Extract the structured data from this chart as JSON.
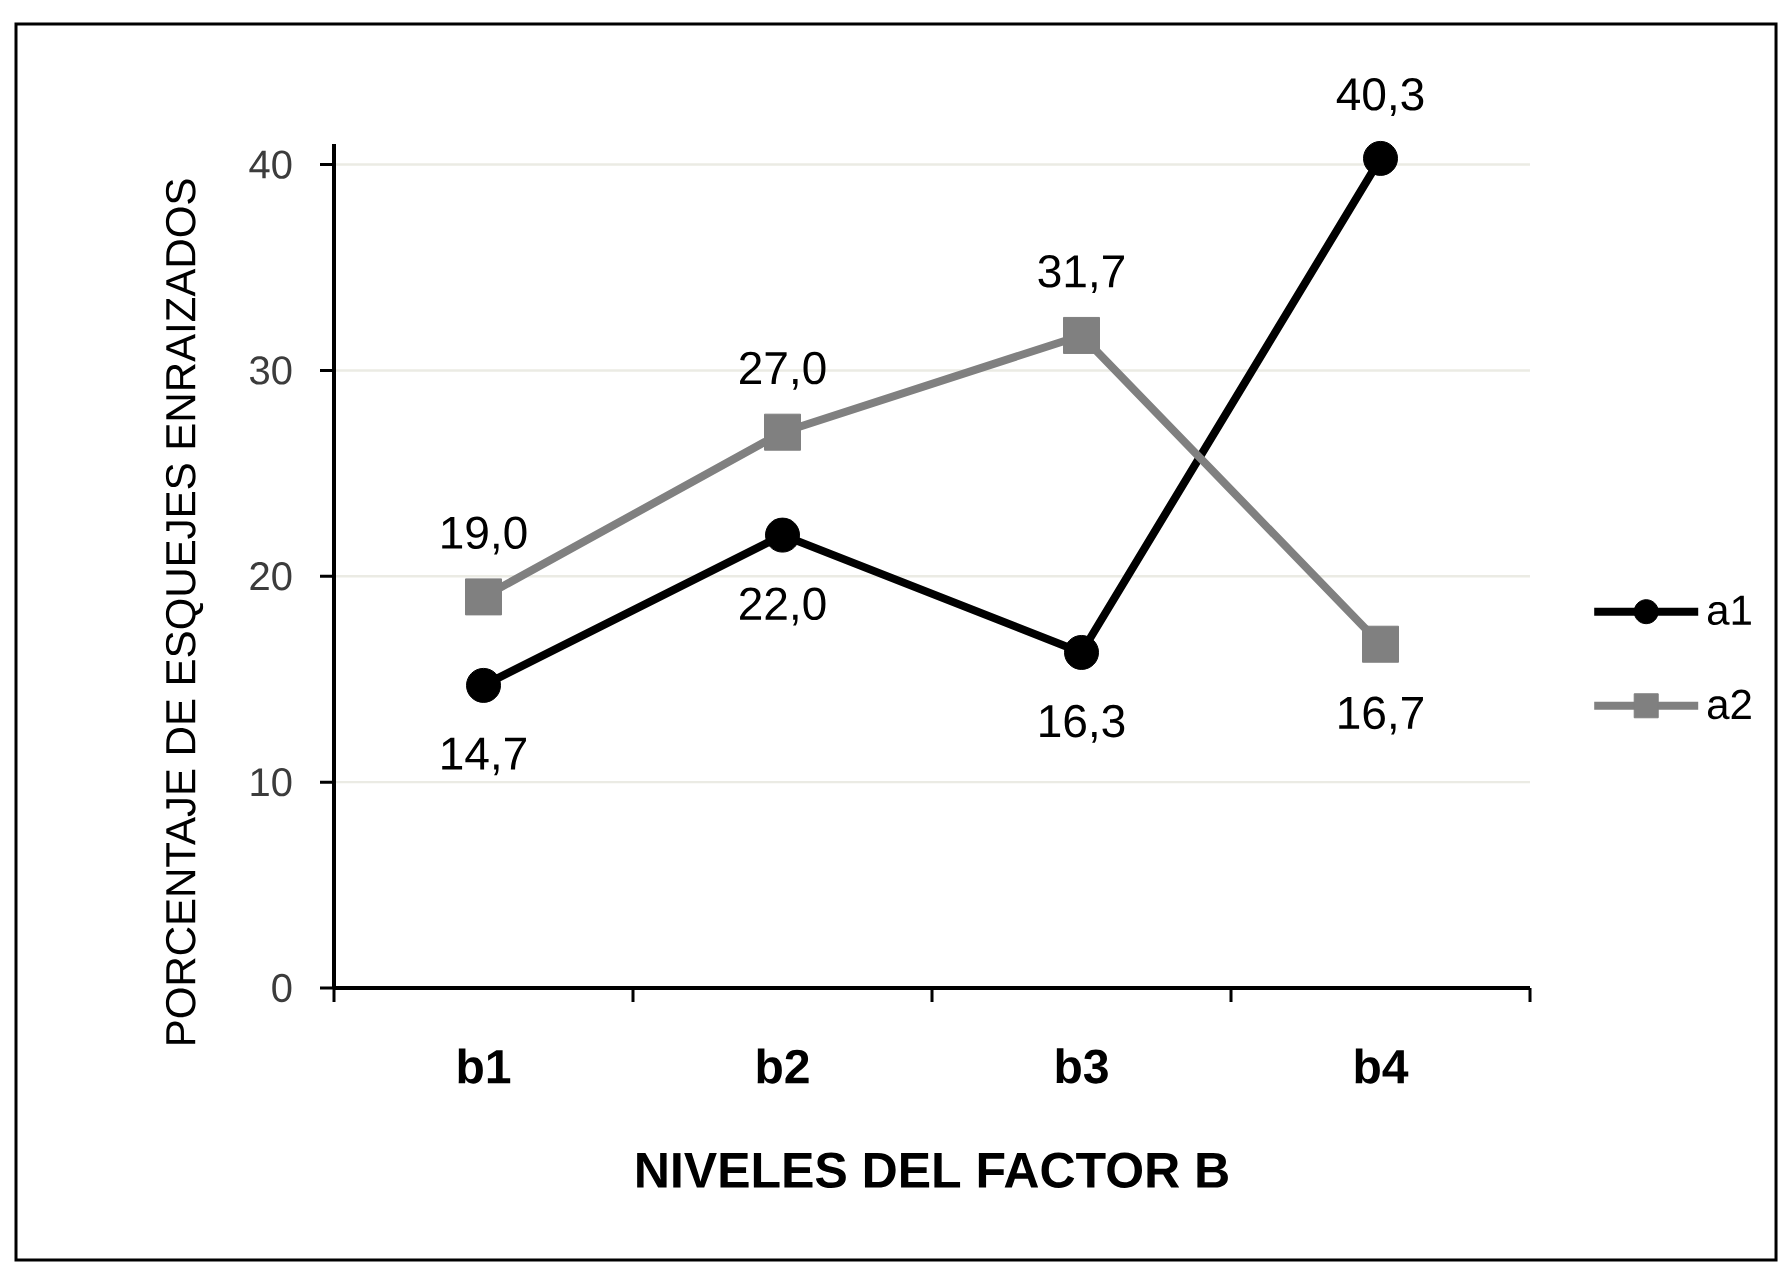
{
  "chart_data": {
    "type": "line",
    "xlabel": "NIVELES DEL FACTOR B",
    "ylabel": "PORCENTAJE DE ESQUEJES ENRAIZADOS",
    "categories": [
      "b1",
      "b2",
      "b3",
      "b4"
    ],
    "series": [
      {
        "name": "a1",
        "color": "#000000",
        "marker": "circle",
        "values": [
          14.7,
          22.0,
          16.3,
          40.3
        ],
        "value_labels": [
          "14,7",
          "22,0",
          "16,3",
          "40,3"
        ]
      },
      {
        "name": "a2",
        "color": "#808080",
        "marker": "square",
        "values": [
          19.0,
          27.0,
          31.7,
          16.7
        ],
        "value_labels": [
          "19,0",
          "27,0",
          "31,7",
          "16,7"
        ]
      }
    ],
    "ylim": [
      0,
      41
    ],
    "yticks": [
      0,
      10,
      20,
      30,
      40
    ],
    "grid": "y",
    "legend": "right",
    "line_style": "solid"
  }
}
